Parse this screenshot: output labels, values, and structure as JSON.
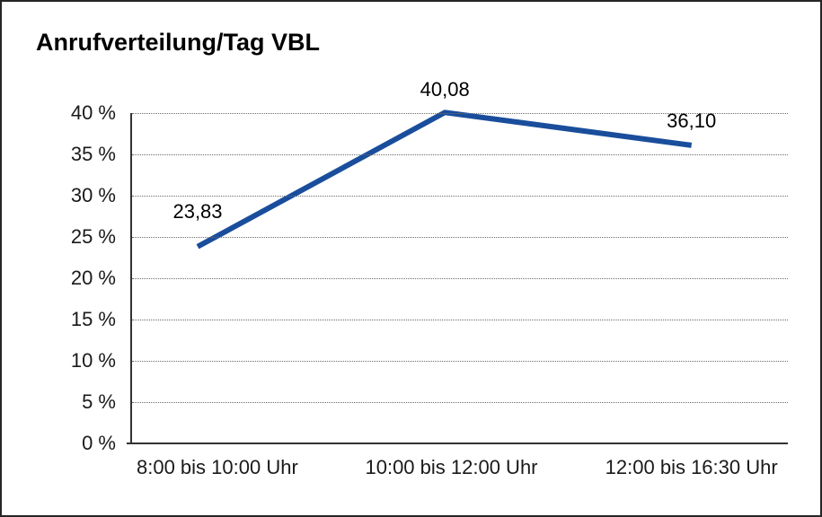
{
  "chart_data": {
    "type": "line",
    "title": "Anrufverteilung/Tag VBL",
    "categories": [
      "8:00 bis 10:00 Uhr",
      "10:00 bis 12:00 Uhr",
      "12:00 bis 16:30 Uhr"
    ],
    "values": [
      23.83,
      40.08,
      36.1
    ],
    "point_labels": [
      "23,83",
      "40,08",
      "36,10"
    ],
    "xlabel": "",
    "ylabel": "",
    "ylim": [
      0,
      40
    ],
    "ytick_step": 5,
    "ytick_labels": [
      "0 %",
      "5 %",
      "10 %",
      "15 %",
      "20 %",
      "25 %",
      "30 %",
      "35 %",
      "40 %"
    ],
    "grid": "horizontal-dotted",
    "legend": "none"
  },
  "colors": {
    "line": "#1A4E9C",
    "axis": "#333333",
    "grid": "#6B6B6B",
    "frame_border": "#262626",
    "text": "#1A1A1A",
    "background": "#FFFFFF"
  }
}
